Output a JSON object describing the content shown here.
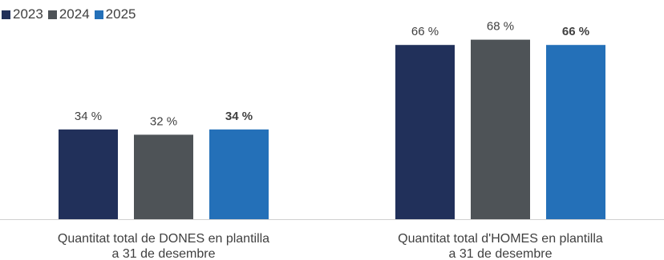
{
  "chart_data": {
    "type": "bar",
    "categories": [
      [
        "Quantitat total de DONES en plantilla",
        "a 31 de desembre"
      ],
      [
        "Quantitat total d'HOMES en plantilla",
        "a 31 de desembre"
      ]
    ],
    "series": [
      {
        "name": "2023",
        "color": "#21305a",
        "values": [
          34,
          66
        ],
        "labels": [
          "34 %",
          "66 %"
        ],
        "bold": false
      },
      {
        "name": "2024",
        "color": "#4e5357",
        "values": [
          32,
          68
        ],
        "labels": [
          "32 %",
          "68 %"
        ],
        "bold": false
      },
      {
        "name": "2025",
        "color": "#2470b8",
        "values": [
          34,
          66
        ],
        "labels": [
          "34 %",
          "66 %"
        ],
        "bold": true
      }
    ],
    "ylim": [
      0,
      80
    ],
    "legend": "top-left",
    "grid": false
  }
}
